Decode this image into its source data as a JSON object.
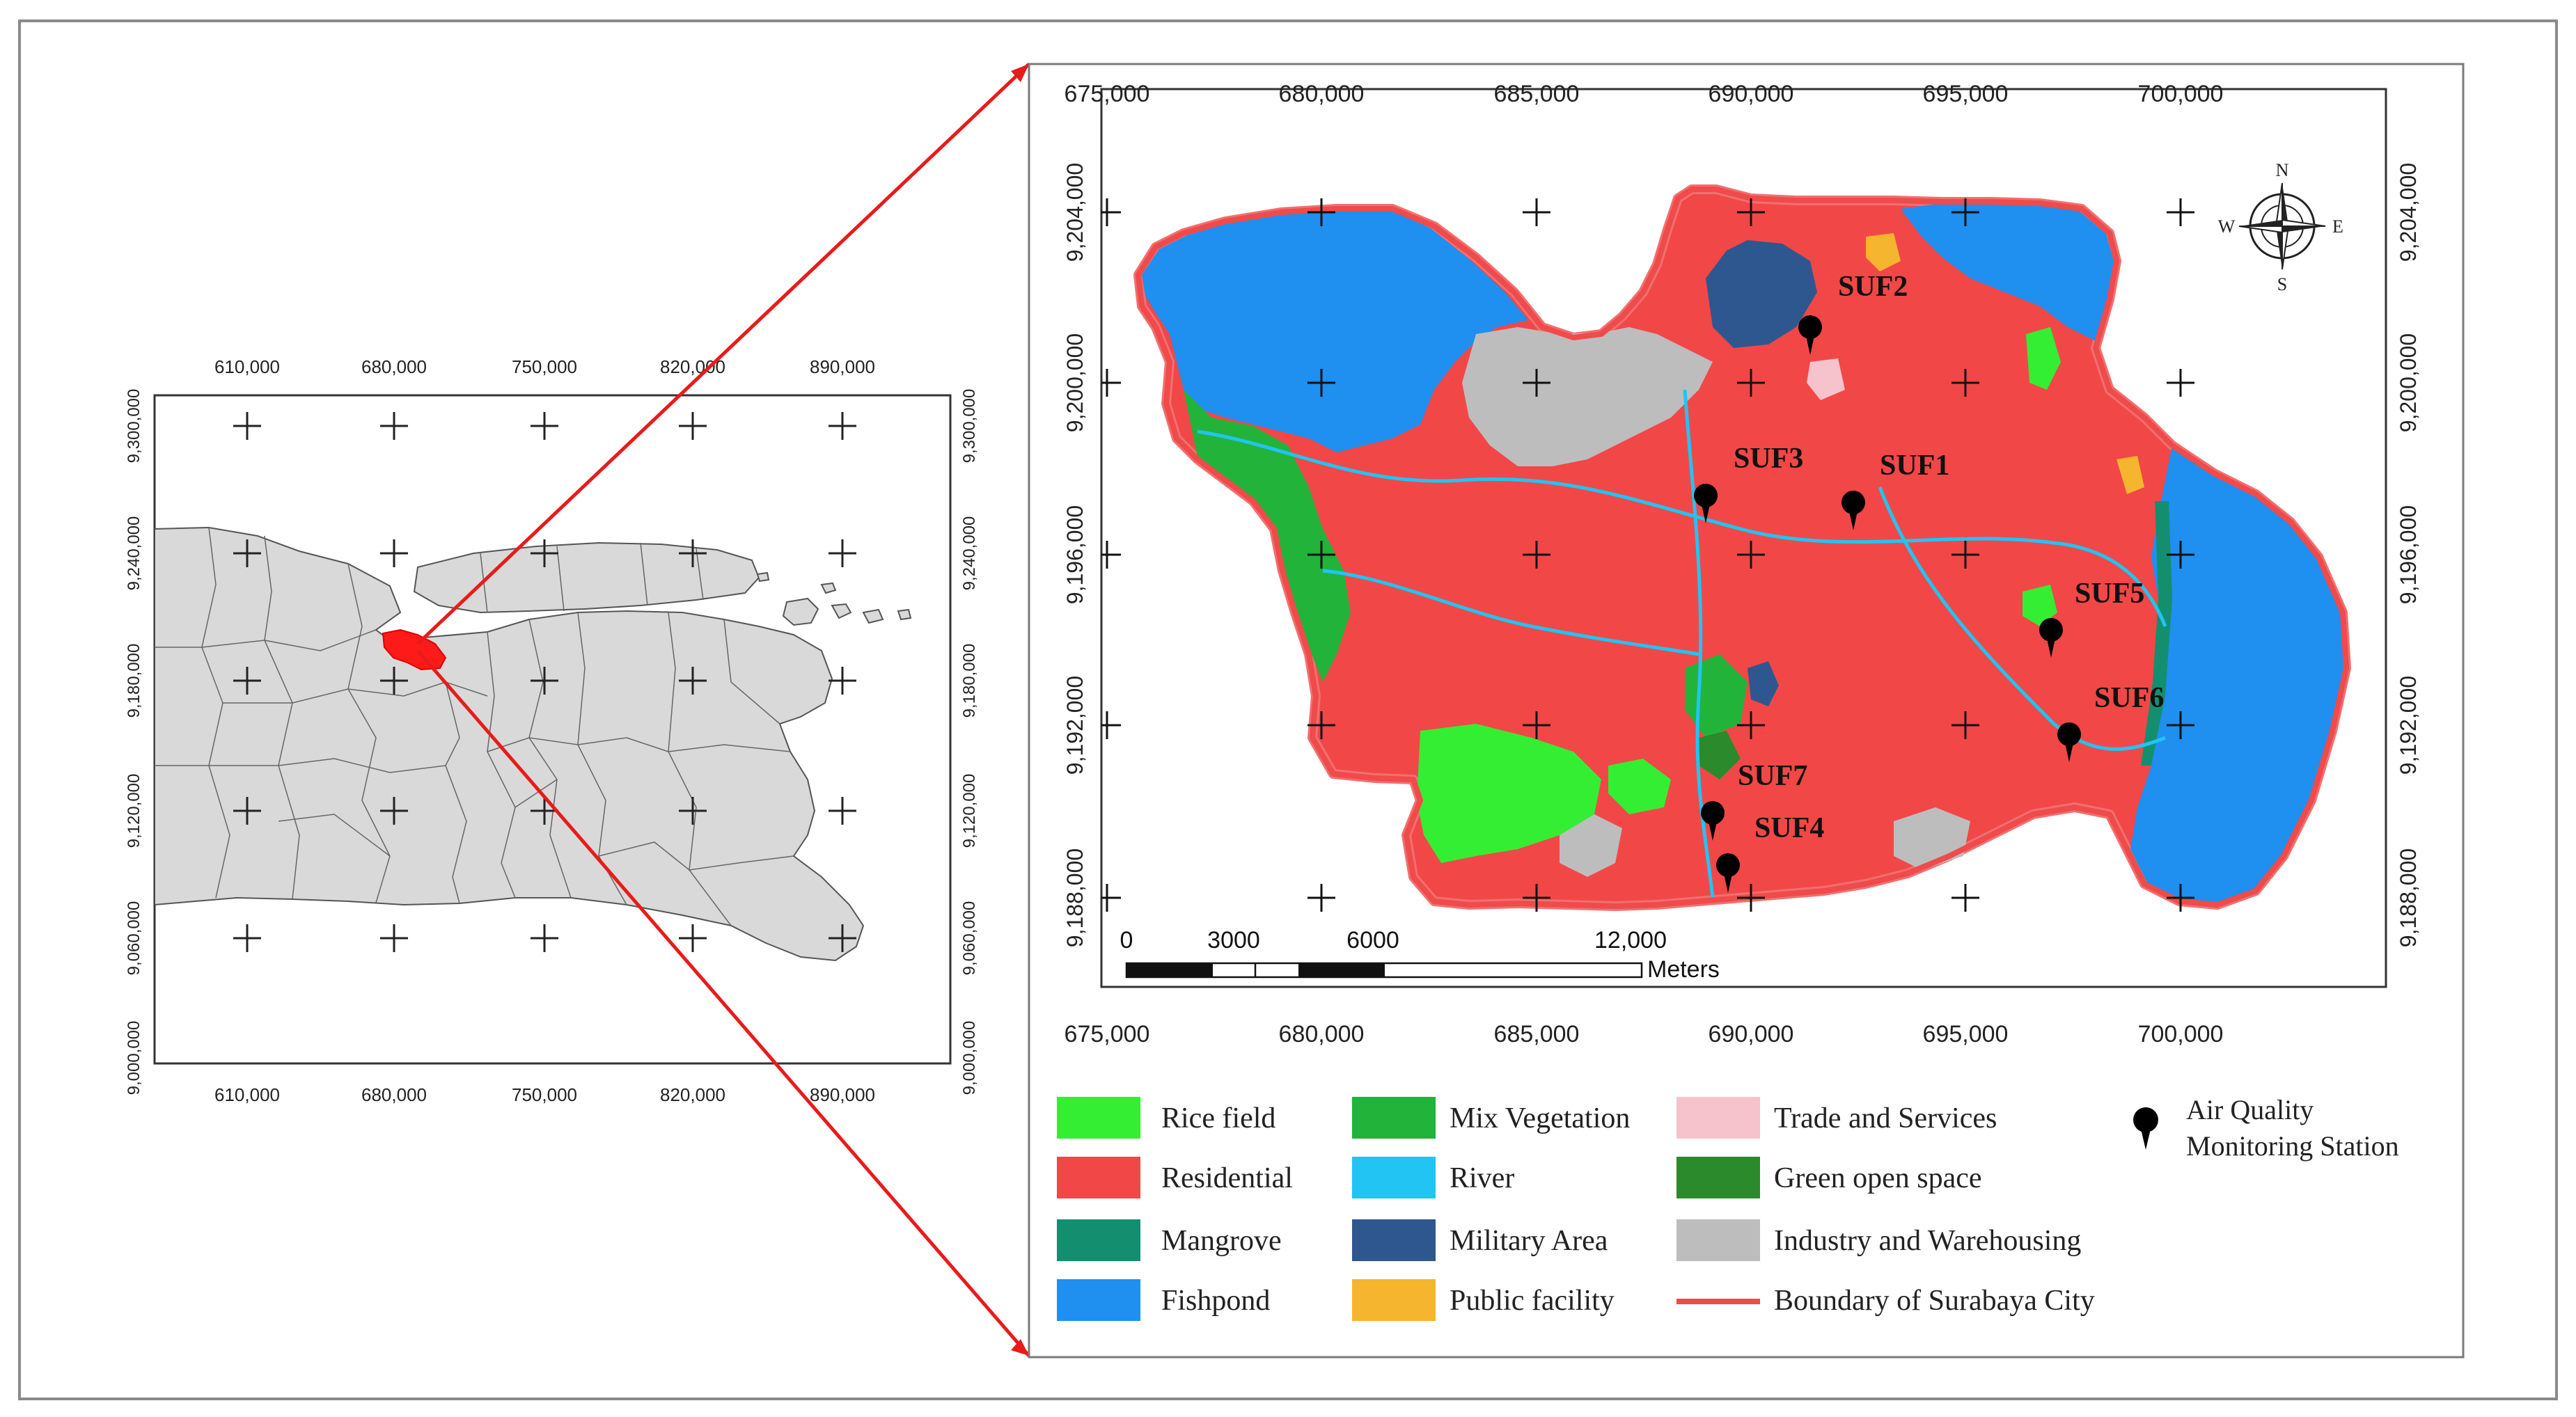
{
  "locator_map": {
    "x_ticks": [
      "610,000",
      "680,000",
      "750,000",
      "820,000",
      "890,000"
    ],
    "y_ticks": [
      "9,300,000",
      "9,240,000",
      "9,180,000",
      "9,120,000",
      "9,060,000",
      "9,000,000"
    ],
    "land_color": "#d9d9d9",
    "highlight_color": "#ff1a1a"
  },
  "main_map": {
    "x_ticks": [
      "675,000",
      "680,000",
      "685,000",
      "690,000",
      "695,000",
      "700,000"
    ],
    "y_ticks": [
      "9,204,000",
      "9,200,000",
      "9,196,000",
      "9,192,000",
      "9,188,000"
    ],
    "north_arrow": {
      "n": "N",
      "s": "S",
      "e": "E",
      "w": "W"
    },
    "scale_bar": {
      "labels": [
        "0",
        "3000",
        "6000",
        "12,000"
      ],
      "unit": "Meters"
    },
    "stations": [
      {
        "id": "SUF1"
      },
      {
        "id": "SUF2"
      },
      {
        "id": "SUF3"
      },
      {
        "id": "SUF4"
      },
      {
        "id": "SUF5"
      },
      {
        "id": "SUF6"
      },
      {
        "id": "SUF7"
      }
    ]
  },
  "legend": {
    "items": [
      {
        "label": "Rice field",
        "color": "#33ee33",
        "kind": "swatch"
      },
      {
        "label": "Residential",
        "color": "#f24747",
        "kind": "swatch"
      },
      {
        "label": "Mangrove",
        "color": "#138f6f",
        "kind": "swatch"
      },
      {
        "label": "Fishpond",
        "color": "#1f8ff0",
        "kind": "swatch"
      },
      {
        "label": "Mix Vegetation",
        "color": "#22b33a",
        "kind": "swatch"
      },
      {
        "label": "River",
        "color": "#21c4f2",
        "kind": "swatch"
      },
      {
        "label": "Military Area",
        "color": "#2f578f",
        "kind": "swatch"
      },
      {
        "label": "Public facility",
        "color": "#f5b52e",
        "kind": "swatch"
      },
      {
        "label": "Trade and Services",
        "color": "#f6c3cc",
        "kind": "swatch"
      },
      {
        "label": "Green open space",
        "color": "#2b8a2b",
        "kind": "swatch"
      },
      {
        "label": "Industry and Warehousing",
        "color": "#bdbdbd",
        "kind": "swatch"
      },
      {
        "label": "Boundary of Surabaya City",
        "color": "#f04a4a",
        "kind": "line"
      }
    ],
    "station_symbol": {
      "line1": "Air Quality",
      "line2": "Monitoring Station"
    }
  }
}
